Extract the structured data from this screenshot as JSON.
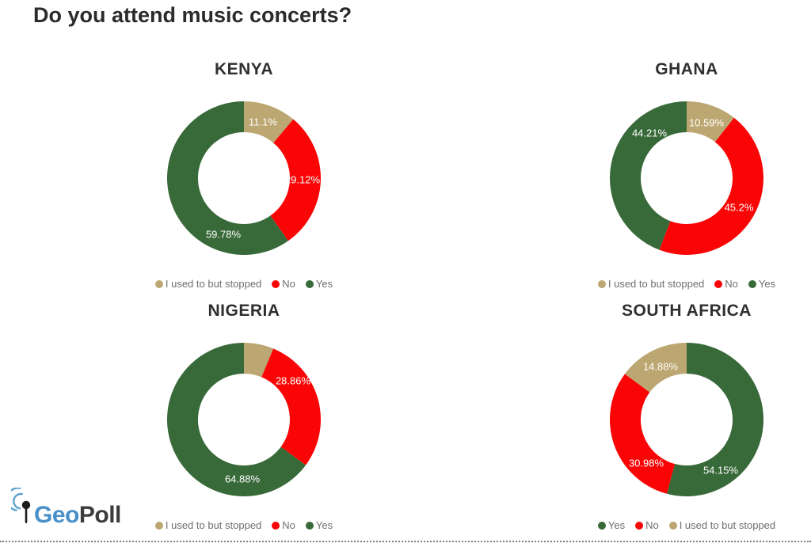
{
  "page": {
    "title": "Do you attend music concerts?"
  },
  "branding": {
    "geo": "Geo",
    "poll": "Poll"
  },
  "colors": {
    "yes_green": "#386939",
    "no_red": "#F90505",
    "stopped_tan": "#BCA671",
    "logo_blue": "#4A90C8",
    "logo_dark": "#3C3C3C",
    "legend_text": "#6E6E6E",
    "label_text": "#FFFFFF"
  },
  "chart_data": [
    {
      "type": "pie",
      "subtype": "donut",
      "title": "KENYA",
      "legend_position": "bottom",
      "segments": [
        {
          "label": "I used to but stopped",
          "value": 11.1,
          "display": "11.1%",
          "color": "#BCA671"
        },
        {
          "label": "No",
          "value": 29.12,
          "display": "29.12%",
          "color": "#F90505"
        },
        {
          "label": "Yes",
          "value": 59.78,
          "display": "59.78%",
          "color": "#386939"
        }
      ]
    },
    {
      "type": "pie",
      "subtype": "donut",
      "title": "GHANA",
      "legend_position": "bottom",
      "segments": [
        {
          "label": "I used to but stopped",
          "value": 10.59,
          "display": "10.59%",
          "color": "#BCA671"
        },
        {
          "label": "No",
          "value": 45.2,
          "display": "45.2%",
          "color": "#F90505"
        },
        {
          "label": "Yes",
          "value": 44.21,
          "display": "44.21%",
          "color": "#386939"
        }
      ]
    },
    {
      "type": "pie",
      "subtype": "donut",
      "title": "NIGERIA",
      "legend_position": "bottom",
      "segments": [
        {
          "label": "I used to but stopped",
          "value": 6.26,
          "display": "",
          "color": "#BCA671"
        },
        {
          "label": "No",
          "value": 28.86,
          "display": "28.86%",
          "color": "#F90505"
        },
        {
          "label": "Yes",
          "value": 64.88,
          "display": "64.88%",
          "color": "#386939"
        }
      ]
    },
    {
      "type": "pie",
      "subtype": "donut",
      "title": "SOUTH AFRICA",
      "legend_position": "bottom",
      "segments": [
        {
          "label": "Yes",
          "value": 54.15,
          "display": "54.15%",
          "color": "#386939"
        },
        {
          "label": "No",
          "value": 30.98,
          "display": "30.98%",
          "color": "#F90505"
        },
        {
          "label": "I used to but stopped",
          "value": 14.88,
          "display": "14.88%",
          "color": "#BCA671"
        }
      ]
    }
  ]
}
